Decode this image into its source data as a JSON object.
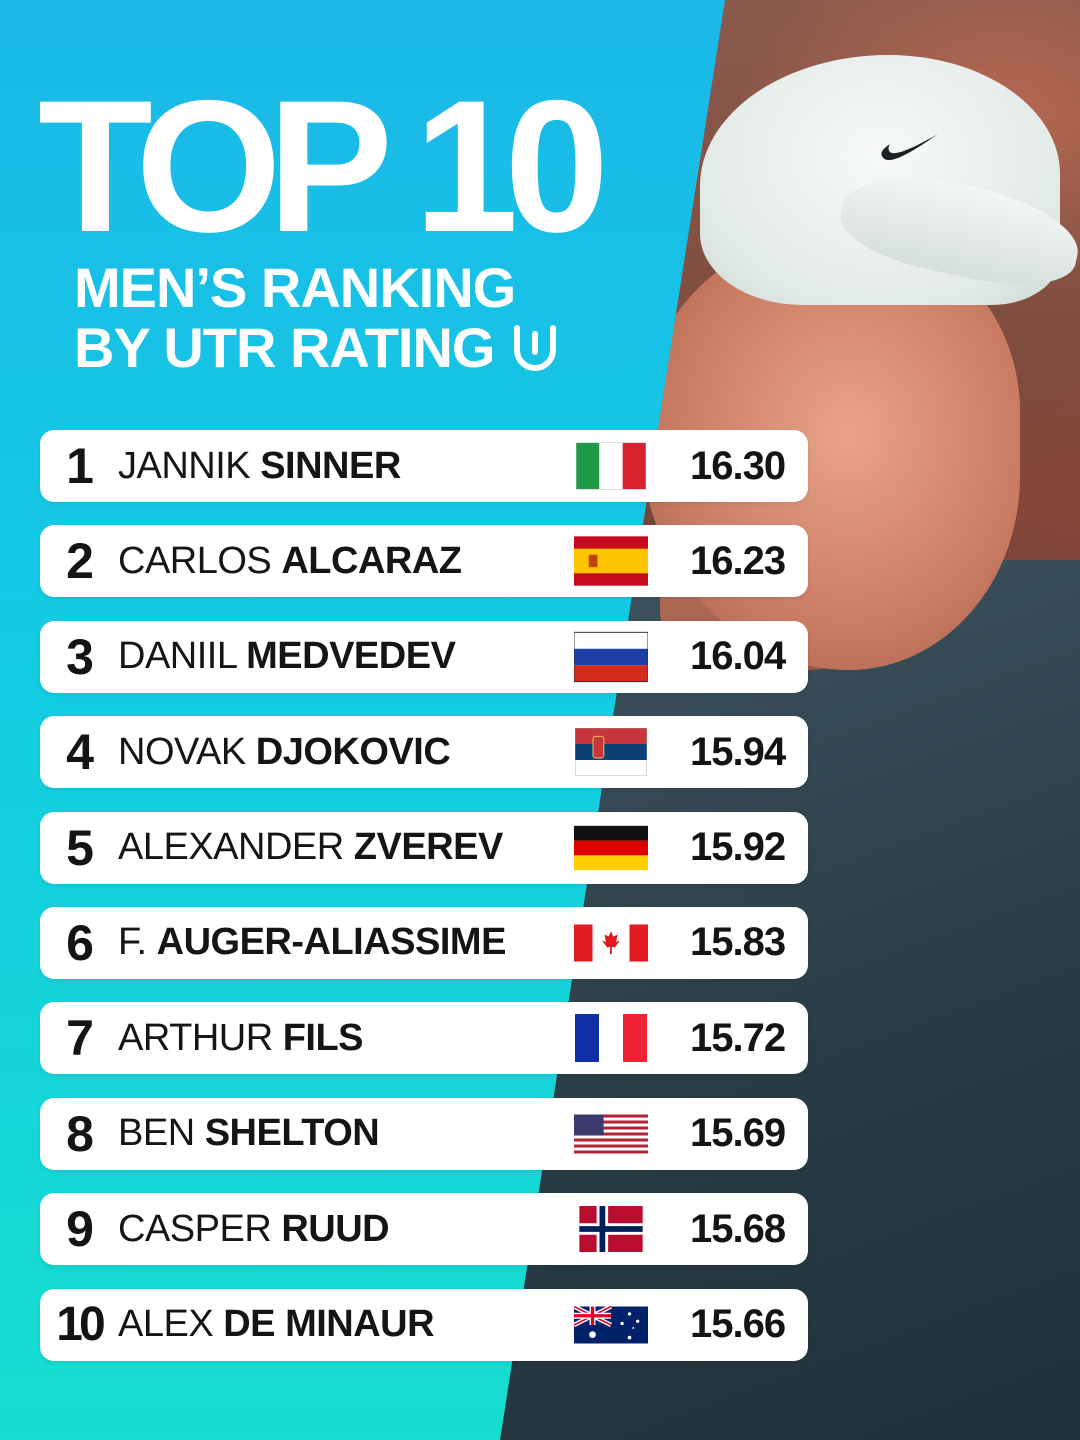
{
  "title": "TOP 10",
  "subtitle_line1": "MEN’S RANKING",
  "subtitle_line2": "BY UTR RATING",
  "brand_icon": "utr-logo-icon",
  "colors": {
    "panel_top": "#1bb8e8",
    "panel_bottom": "#16ddd0",
    "row_bg": "#ffffff",
    "text": "#141414"
  },
  "rankings": [
    {
      "rank": "1",
      "first": "JANNIK",
      "last": "SINNER",
      "country": "Italy",
      "flag": "italy-flag-icon",
      "rating": "16.30"
    },
    {
      "rank": "2",
      "first": "CARLOS",
      "last": "ALCARAZ",
      "country": "Spain",
      "flag": "spain-flag-icon",
      "rating": "16.23"
    },
    {
      "rank": "3",
      "first": "DANIIL",
      "last": "MEDVEDEV",
      "country": "Russia",
      "flag": "russia-flag-icon",
      "rating": "16.04"
    },
    {
      "rank": "4",
      "first": "NOVAK",
      "last": "DJOKOVIC",
      "country": "Serbia",
      "flag": "serbia-flag-icon",
      "rating": "15.94"
    },
    {
      "rank": "5",
      "first": "ALEXANDER",
      "last": "ZVEREV",
      "country": "Germany",
      "flag": "germany-flag-icon",
      "rating": "15.92"
    },
    {
      "rank": "6",
      "first": "F.",
      "last": "AUGER-ALIASSIME",
      "country": "Canada",
      "flag": "canada-flag-icon",
      "rating": "15.83"
    },
    {
      "rank": "7",
      "first": "ARTHUR",
      "last": "FILS",
      "country": "France",
      "flag": "france-flag-icon",
      "rating": "15.72"
    },
    {
      "rank": "8",
      "first": "BEN",
      "last": "SHELTON",
      "country": "United States",
      "flag": "usa-flag-icon",
      "rating": "15.69"
    },
    {
      "rank": "9",
      "first": "CASPER",
      "last": "RUUD",
      "country": "Norway",
      "flag": "norway-flag-icon",
      "rating": "15.68"
    },
    {
      "rank": "10",
      "first": "ALEX",
      "last": "DE MINAUR",
      "country": "Australia",
      "flag": "australia-flag-icon",
      "rating": "15.66"
    }
  ]
}
